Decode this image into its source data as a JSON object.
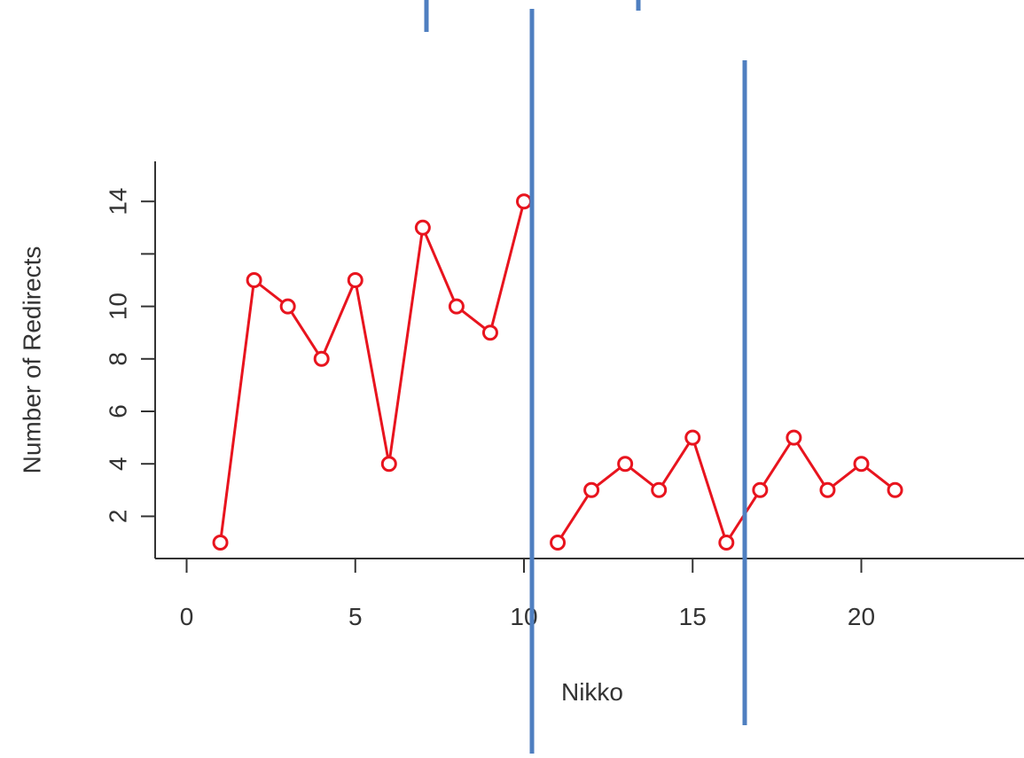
{
  "chart_data": {
    "type": "line",
    "title": "",
    "xlabel": "Nikko",
    "ylabel": "Number of Redirects",
    "xlim": [
      -1,
      25
    ],
    "ylim": [
      0.4,
      14.8
    ],
    "x_ticks": [
      0,
      5,
      10,
      15,
      20
    ],
    "y_ticks": [
      2,
      4,
      6,
      8,
      10,
      12,
      14
    ],
    "y_tick_labels": [
      "2",
      "4",
      "6",
      "8",
      "10",
      "",
      "14"
    ],
    "grid": false,
    "legend": "none",
    "series": [
      {
        "color": "#e8141e",
        "marker": "circle",
        "segments": [
          {
            "x": [
              1,
              2,
              3,
              4,
              5,
              6,
              7,
              8,
              9,
              10
            ],
            "y": [
              1,
              11,
              10,
              8,
              11,
              4,
              13,
              10,
              9,
              14
            ]
          },
          {
            "x": [
              11,
              12,
              13,
              14,
              15,
              16,
              17,
              18,
              19,
              20,
              21
            ],
            "y": [
              1,
              3,
              4,
              3,
              5,
              1,
              3,
              5,
              3,
              4,
              3
            ]
          }
        ]
      }
    ],
    "overlay_lines": {
      "color": "#4f7fc0",
      "vertical_lines": [
        {
          "name": "vline-long-left"
        },
        {
          "name": "vline-long-right"
        },
        {
          "name": "vline-short-1"
        },
        {
          "name": "vline-short-2"
        }
      ]
    }
  }
}
